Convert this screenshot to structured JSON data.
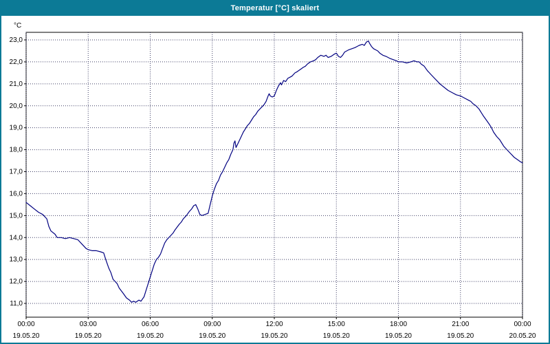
{
  "window": {
    "title": "Temperatur [°C] skaliert"
  },
  "colors": {
    "titlebar_bg": "#0c7a96",
    "titlebar_text": "#ffffff",
    "window_border": "#0c7a96",
    "plot_border": "#000000",
    "grid": "#3c3c64",
    "series_line": "#000080",
    "background": "#ffffff"
  },
  "chart_data": {
    "type": "line",
    "title": "Temperatur [°C] skaliert",
    "ylabel": "°C",
    "ylim": [
      11,
      23
    ],
    "x_range_hours": [
      0,
      24
    ],
    "grid": "dotted",
    "legend": "none",
    "y_ticks": [
      {
        "value": 23,
        "label": "23,0"
      },
      {
        "value": 22,
        "label": "22,0"
      },
      {
        "value": 21,
        "label": "21,0"
      },
      {
        "value": 20,
        "label": "20,0"
      },
      {
        "value": 19,
        "label": "19,0"
      },
      {
        "value": 18,
        "label": "18,0"
      },
      {
        "value": 17,
        "label": "17,0"
      },
      {
        "value": 16,
        "label": "16,0"
      },
      {
        "value": 15,
        "label": "15,0"
      },
      {
        "value": 14,
        "label": "14,0"
      },
      {
        "value": 13,
        "label": "13,0"
      },
      {
        "value": 12,
        "label": "12,0"
      },
      {
        "value": 11,
        "label": "11,0"
      }
    ],
    "x_ticks": [
      {
        "hour": 0,
        "time": "00:00",
        "date": "19.05.20"
      },
      {
        "hour": 3,
        "time": "03:00",
        "date": "19.05.20"
      },
      {
        "hour": 6,
        "time": "06:00",
        "date": "19.05.20"
      },
      {
        "hour": 9,
        "time": "09:00",
        "date": "19.05.20"
      },
      {
        "hour": 12,
        "time": "12:00",
        "date": "19.05.20"
      },
      {
        "hour": 15,
        "time": "15:00",
        "date": "19.05.20"
      },
      {
        "hour": 18,
        "time": "18:00",
        "date": "19.05.20"
      },
      {
        "hour": 21,
        "time": "21:00",
        "date": "19.05.20"
      },
      {
        "hour": 24,
        "time": "00:00",
        "date": "20.05.20"
      }
    ],
    "series": [
      {
        "name": "Temperatur",
        "unit": "°C",
        "color": "#000080",
        "points": [
          [
            0.0,
            15.6
          ],
          [
            0.2,
            15.45
          ],
          [
            0.4,
            15.3
          ],
          [
            0.6,
            15.15
          ],
          [
            0.8,
            15.05
          ],
          [
            1.0,
            14.85
          ],
          [
            1.1,
            14.5
          ],
          [
            1.2,
            14.3
          ],
          [
            1.4,
            14.15
          ],
          [
            1.5,
            14.0
          ],
          [
            1.7,
            14.0
          ],
          [
            1.9,
            13.95
          ],
          [
            2.1,
            14.0
          ],
          [
            2.3,
            13.95
          ],
          [
            2.5,
            13.9
          ],
          [
            2.7,
            13.7
          ],
          [
            2.9,
            13.5
          ],
          [
            3.0,
            13.45
          ],
          [
            3.2,
            13.4
          ],
          [
            3.4,
            13.4
          ],
          [
            3.6,
            13.35
          ],
          [
            3.75,
            13.3
          ],
          [
            3.85,
            13.0
          ],
          [
            4.0,
            12.6
          ],
          [
            4.1,
            12.4
          ],
          [
            4.2,
            12.1
          ],
          [
            4.4,
            11.9
          ],
          [
            4.5,
            11.7
          ],
          [
            4.7,
            11.45
          ],
          [
            4.85,
            11.25
          ],
          [
            5.0,
            11.15
          ],
          [
            5.1,
            11.05
          ],
          [
            5.2,
            11.1
          ],
          [
            5.3,
            11.05
          ],
          [
            5.45,
            11.15
          ],
          [
            5.55,
            11.1
          ],
          [
            5.7,
            11.3
          ],
          [
            5.8,
            11.6
          ],
          [
            5.9,
            11.9
          ],
          [
            6.0,
            12.2
          ],
          [
            6.1,
            12.5
          ],
          [
            6.2,
            12.8
          ],
          [
            6.3,
            13.0
          ],
          [
            6.4,
            13.1
          ],
          [
            6.5,
            13.25
          ],
          [
            6.6,
            13.5
          ],
          [
            6.7,
            13.75
          ],
          [
            6.8,
            13.9
          ],
          [
            6.9,
            14.0
          ],
          [
            7.0,
            14.1
          ],
          [
            7.1,
            14.2
          ],
          [
            7.2,
            14.35
          ],
          [
            7.4,
            14.6
          ],
          [
            7.5,
            14.7
          ],
          [
            7.6,
            14.85
          ],
          [
            7.75,
            15.0
          ],
          [
            7.9,
            15.2
          ],
          [
            8.0,
            15.3
          ],
          [
            8.1,
            15.45
          ],
          [
            8.2,
            15.5
          ],
          [
            8.3,
            15.3
          ],
          [
            8.4,
            15.05
          ],
          [
            8.5,
            15.0
          ],
          [
            8.65,
            15.05
          ],
          [
            8.8,
            15.1
          ],
          [
            8.9,
            15.5
          ],
          [
            9.0,
            15.9
          ],
          [
            9.1,
            16.2
          ],
          [
            9.2,
            16.45
          ],
          [
            9.3,
            16.6
          ],
          [
            9.4,
            16.85
          ],
          [
            9.5,
            17.0
          ],
          [
            9.6,
            17.2
          ],
          [
            9.7,
            17.4
          ],
          [
            9.8,
            17.55
          ],
          [
            9.9,
            17.8
          ],
          [
            10.0,
            18.0
          ],
          [
            10.05,
            18.3
          ],
          [
            10.1,
            18.4
          ],
          [
            10.15,
            18.1
          ],
          [
            10.25,
            18.3
          ],
          [
            10.35,
            18.5
          ],
          [
            10.5,
            18.8
          ],
          [
            10.6,
            18.95
          ],
          [
            10.7,
            19.1
          ],
          [
            10.8,
            19.2
          ],
          [
            10.9,
            19.35
          ],
          [
            11.0,
            19.5
          ],
          [
            11.1,
            19.6
          ],
          [
            11.2,
            19.75
          ],
          [
            11.3,
            19.85
          ],
          [
            11.4,
            19.95
          ],
          [
            11.5,
            20.05
          ],
          [
            11.6,
            20.2
          ],
          [
            11.7,
            20.45
          ],
          [
            11.75,
            20.55
          ],
          [
            11.8,
            20.45
          ],
          [
            11.9,
            20.4
          ],
          [
            12.0,
            20.45
          ],
          [
            12.1,
            20.7
          ],
          [
            12.2,
            20.9
          ],
          [
            12.3,
            21.05
          ],
          [
            12.35,
            20.95
          ],
          [
            12.45,
            21.15
          ],
          [
            12.55,
            21.1
          ],
          [
            12.65,
            21.25
          ],
          [
            12.75,
            21.3
          ],
          [
            12.85,
            21.35
          ],
          [
            13.0,
            21.5
          ],
          [
            13.1,
            21.55
          ],
          [
            13.25,
            21.65
          ],
          [
            13.4,
            21.75
          ],
          [
            13.5,
            21.8
          ],
          [
            13.6,
            21.9
          ],
          [
            13.75,
            22.0
          ],
          [
            13.9,
            22.05
          ],
          [
            14.0,
            22.1
          ],
          [
            14.1,
            22.2
          ],
          [
            14.25,
            22.3
          ],
          [
            14.4,
            22.25
          ],
          [
            14.5,
            22.3
          ],
          [
            14.6,
            22.2
          ],
          [
            14.75,
            22.25
          ],
          [
            14.9,
            22.35
          ],
          [
            15.0,
            22.4
          ],
          [
            15.1,
            22.25
          ],
          [
            15.2,
            22.2
          ],
          [
            15.3,
            22.3
          ],
          [
            15.4,
            22.45
          ],
          [
            15.5,
            22.5
          ],
          [
            15.6,
            22.55
          ],
          [
            15.75,
            22.6
          ],
          [
            15.9,
            22.65
          ],
          [
            16.0,
            22.7
          ],
          [
            16.1,
            22.75
          ],
          [
            16.25,
            22.8
          ],
          [
            16.35,
            22.75
          ],
          [
            16.45,
            22.9
          ],
          [
            16.55,
            22.95
          ],
          [
            16.6,
            22.85
          ],
          [
            16.7,
            22.7
          ],
          [
            16.8,
            22.6
          ],
          [
            16.9,
            22.55
          ],
          [
            17.0,
            22.5
          ],
          [
            17.1,
            22.4
          ],
          [
            17.25,
            22.3
          ],
          [
            17.4,
            22.25
          ],
          [
            17.5,
            22.2
          ],
          [
            17.6,
            22.15
          ],
          [
            17.75,
            22.1
          ],
          [
            17.9,
            22.05
          ],
          [
            18.0,
            22.0
          ],
          [
            18.2,
            22.0
          ],
          [
            18.4,
            21.95
          ],
          [
            18.6,
            22.0
          ],
          [
            18.75,
            22.05
          ],
          [
            18.9,
            22.0
          ],
          [
            19.0,
            22.0
          ],
          [
            19.1,
            21.9
          ],
          [
            19.25,
            21.8
          ],
          [
            19.4,
            21.6
          ],
          [
            19.5,
            21.5
          ],
          [
            19.6,
            21.4
          ],
          [
            19.75,
            21.25
          ],
          [
            19.9,
            21.1
          ],
          [
            20.0,
            21.0
          ],
          [
            20.2,
            20.85
          ],
          [
            20.4,
            20.7
          ],
          [
            20.6,
            20.6
          ],
          [
            20.8,
            20.5
          ],
          [
            21.0,
            20.45
          ],
          [
            21.2,
            20.35
          ],
          [
            21.4,
            20.25
          ],
          [
            21.5,
            20.2
          ],
          [
            21.6,
            20.1
          ],
          [
            21.75,
            20.0
          ],
          [
            21.9,
            19.85
          ],
          [
            22.0,
            19.7
          ],
          [
            22.1,
            19.55
          ],
          [
            22.25,
            19.35
          ],
          [
            22.4,
            19.15
          ],
          [
            22.5,
            19.0
          ],
          [
            22.6,
            18.8
          ],
          [
            22.75,
            18.6
          ],
          [
            22.9,
            18.45
          ],
          [
            23.0,
            18.3
          ],
          [
            23.1,
            18.15
          ],
          [
            23.25,
            18.0
          ],
          [
            23.4,
            17.85
          ],
          [
            23.5,
            17.75
          ],
          [
            23.6,
            17.65
          ],
          [
            23.75,
            17.55
          ],
          [
            23.9,
            17.45
          ],
          [
            24.0,
            17.4
          ]
        ]
      }
    ]
  }
}
